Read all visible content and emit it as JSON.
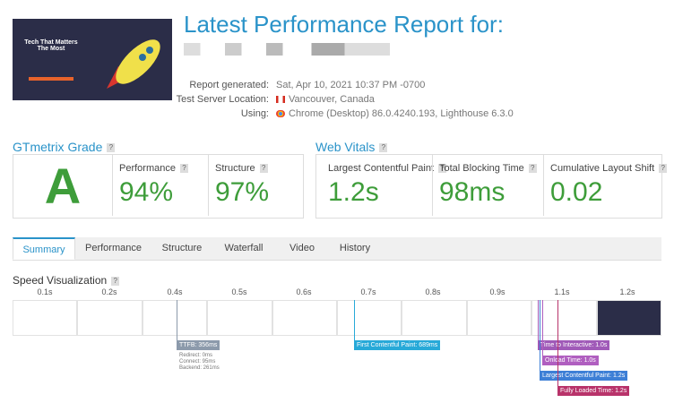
{
  "header": {
    "title": "Latest Performance Report for:",
    "details": [
      {
        "label": "Report generated:",
        "value": "Sat, Apr 10, 2021 10:37 PM -0700"
      },
      {
        "label": "Test Server Location:",
        "value": "Vancouver, Canada"
      },
      {
        "label": "Using:",
        "value": "Chrome (Desktop) 86.0.4240.193, Lighthouse 6.3.0"
      }
    ]
  },
  "thumbnail": {
    "headline": "Tech That Matters The Most"
  },
  "help_icon": "?",
  "grade": {
    "heading": "GTmetrix Grade",
    "letter": "A",
    "metrics": [
      {
        "label": "Performance",
        "value": "94%"
      },
      {
        "label": "Structure",
        "value": "97%"
      }
    ]
  },
  "vitals": {
    "heading": "Web Vitals",
    "metrics": [
      {
        "label": "Largest Contentful Paint",
        "value": "1.2s"
      },
      {
        "label": "Total Blocking Time",
        "value": "98ms"
      },
      {
        "label": "Cumulative Layout Shift",
        "value": "0.02"
      }
    ]
  },
  "tabs": [
    "Summary",
    "Performance",
    "Structure",
    "Waterfall",
    "Video",
    "History"
  ],
  "speed": {
    "heading": "Speed Visualization",
    "ticks": [
      "0.1s",
      "0.2s",
      "0.4s",
      "0.5s",
      "0.6s",
      "0.7s",
      "0.8s",
      "0.9s",
      "1.1s",
      "1.2s"
    ],
    "markers": [
      {
        "label": "TTFB: 356ms",
        "details": [
          "Redirect: 0ms",
          "Connect: 95ms",
          "Backend: 261ms"
        ]
      },
      {
        "label": "First Contentful Paint: 689ms"
      },
      {
        "label": "Time to Interactive: 1.0s"
      },
      {
        "label": "Onload Time: 1.0s"
      },
      {
        "label": "Largest Contentful Paint: 1.2s"
      },
      {
        "label": "Fully Loaded Time: 1.2s"
      }
    ]
  }
}
